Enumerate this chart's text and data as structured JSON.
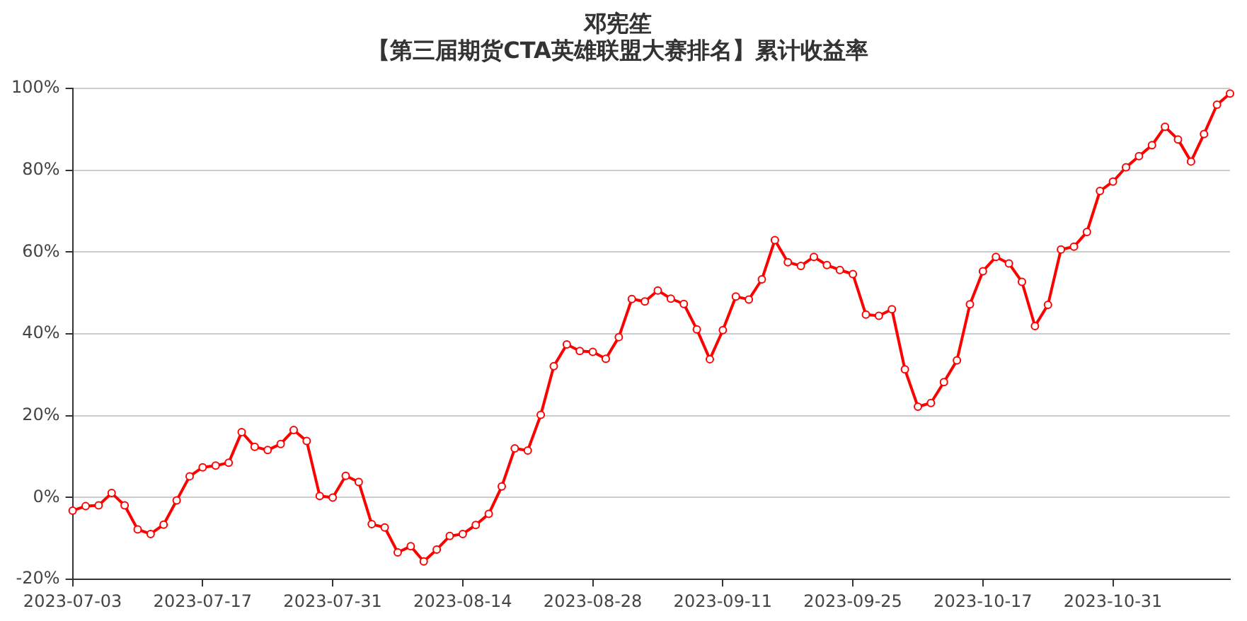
{
  "chart_data": {
    "type": "line",
    "title": "邓宪笙",
    "subtitle": "【第三届期货CTA英雄联盟大赛排名】累计收益率",
    "categories": [
      "2023-07-03",
      null,
      null,
      null,
      null,
      null,
      null,
      null,
      null,
      null,
      "2023-07-17",
      null,
      null,
      null,
      null,
      null,
      null,
      null,
      null,
      null,
      "2023-07-31",
      null,
      null,
      null,
      null,
      null,
      null,
      null,
      null,
      null,
      "2023-08-14",
      null,
      null,
      null,
      null,
      null,
      null,
      null,
      null,
      null,
      "2023-08-28",
      null,
      null,
      null,
      null,
      null,
      null,
      null,
      null,
      null,
      "2023-09-11",
      null,
      null,
      null,
      null,
      null,
      null,
      null,
      null,
      null,
      "2023-09-25",
      null,
      null,
      null,
      null,
      null,
      null,
      null,
      null,
      null,
      "2023-10-17",
      null,
      null,
      null,
      null,
      null,
      null,
      null,
      null,
      null,
      "2023-10-31",
      null,
      null,
      null,
      null,
      null,
      null,
      null,
      null,
      null
    ],
    "series": [
      {
        "color": "#ff0000",
        "values": [
          -3.2,
          -2.1,
          -1.9,
          1.1,
          -1.9,
          -7.8,
          -8.9,
          -6.6,
          -0.7,
          5.2,
          7.4,
          7.8,
          8.5,
          16.0,
          12.4,
          11.6,
          13.1,
          16.5,
          13.8,
          0.4,
          0,
          5.3,
          3.8,
          -6.5,
          -7.3,
          -13.4,
          -11.9,
          -15.6,
          -12.7,
          -9.4,
          -8.9,
          -6.7,
          -4.0,
          2.7,
          12.0,
          11.5,
          20.2,
          32.1,
          37.4,
          35.8,
          35.6,
          33.9,
          39.2,
          48.5,
          47.9,
          50.6,
          48.6,
          47.3,
          41.1,
          33.8,
          40.9,
          49.1,
          48.4,
          53.3,
          62.9,
          57.5,
          56.6,
          58.8,
          56.8,
          55.6,
          54.6,
          44.7,
          44.4,
          46.0,
          31.3,
          22.2,
          23.1,
          28.2,
          33.5,
          47.2,
          55.3,
          58.8,
          57.2,
          52.7,
          41.9,
          47.1,
          60.6,
          61.3,
          64.9,
          74.9,
          77.2,
          80.7,
          83.4,
          86.1,
          90.6,
          87.5,
          82.1,
          88.8,
          96.0,
          98.7
        ]
      }
    ],
    "ylim": [
      -20,
      100
    ],
    "yticks": [
      {
        "value": -20,
        "label": "-20%"
      },
      {
        "value": 0,
        "label": "0%"
      },
      {
        "value": 20,
        "label": "20%"
      },
      {
        "value": 40,
        "label": "40%"
      },
      {
        "value": 60,
        "label": "60%"
      },
      {
        "value": 80,
        "label": "80%"
      },
      {
        "value": 100,
        "label": "100%"
      }
    ],
    "grid": "y",
    "legend": false,
    "marker": "circle",
    "line_style": "solid"
  }
}
